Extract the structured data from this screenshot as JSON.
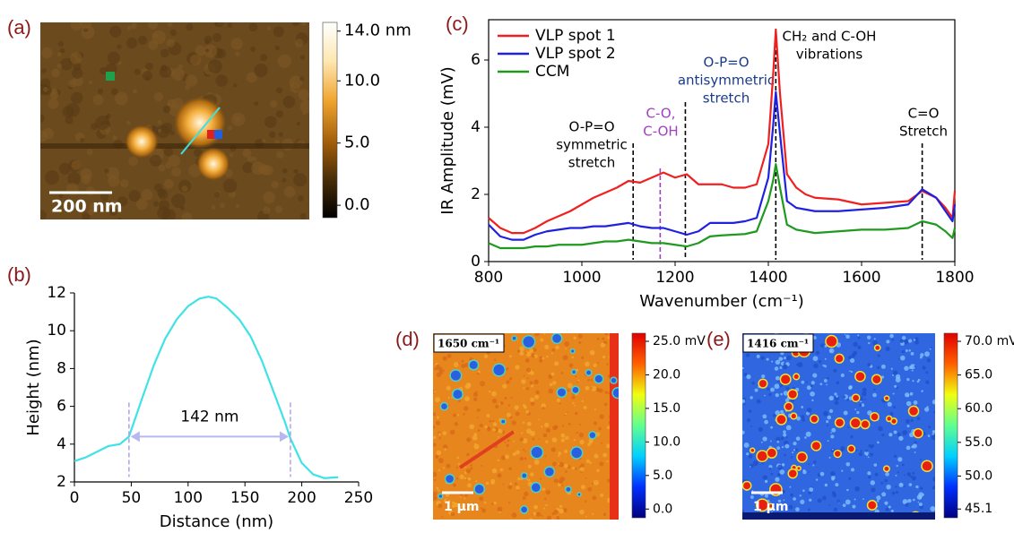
{
  "chart_data": [
    {
      "type": "image",
      "label": "(a)",
      "scalebar": "200 nm",
      "colormap": [
        "#000000",
        "#4a2e08",
        "#a8620c",
        "#f0a530",
        "#fde7b0",
        "#ffffff"
      ],
      "colorbar_lim": [
        -1,
        14.7
      ],
      "colorbar_ticks": [
        {
          "value": 14,
          "label": "14.0 nm"
        },
        {
          "value": 10,
          "label": "10.0"
        },
        {
          "value": 5,
          "label": "5.0"
        },
        {
          "value": 0,
          "label": "0.0"
        }
      ]
    },
    {
      "type": "line",
      "label": "(b)",
      "xlabel": "Distance (nm)",
      "ylabel": "Height (nm)",
      "xlim": [
        0,
        250
      ],
      "ylim": [
        2,
        12
      ],
      "xticks": [
        0,
        50,
        100,
        150,
        200,
        250
      ],
      "yticks": [
        2,
        4,
        6,
        8,
        10,
        12
      ],
      "x": [
        0,
        10,
        20,
        30,
        40,
        48,
        60,
        70,
        80,
        90,
        100,
        110,
        118,
        125,
        135,
        145,
        155,
        165,
        175,
        185,
        190,
        200,
        210,
        220,
        232
      ],
      "series": [
        {
          "color": "#3fe3e6",
          "values": [
            3.1,
            3.3,
            3.6,
            3.9,
            4.0,
            4.4,
            6.5,
            8.2,
            9.6,
            10.6,
            11.3,
            11.7,
            11.8,
            11.7,
            11.2,
            10.6,
            9.7,
            8.4,
            6.8,
            5.2,
            4.3,
            3.0,
            2.4,
            2.2,
            2.25
          ]
        }
      ],
      "span": [
        48,
        190
      ],
      "span_label": "142 nm"
    },
    {
      "type": "line",
      "label": "(c)",
      "xlabel": "Wavenumber (cm⁻¹)",
      "ylabel": "IR Amplitude (mV)",
      "xlim": [
        800,
        1800
      ],
      "ylim": [
        0,
        7.2
      ],
      "xticks": [
        800,
        1000,
        1200,
        1400,
        1600,
        1800
      ],
      "yticks": [
        0,
        2,
        4,
        6
      ],
      "x": [
        800,
        825,
        850,
        875,
        900,
        925,
        950,
        975,
        1000,
        1025,
        1050,
        1075,
        1100,
        1125,
        1150,
        1175,
        1200,
        1225,
        1250,
        1275,
        1300,
        1325,
        1350,
        1375,
        1400,
        1410,
        1416,
        1425,
        1440,
        1460,
        1480,
        1500,
        1550,
        1600,
        1650,
        1700,
        1730,
        1760,
        1780,
        1795,
        1800
      ],
      "series": [
        {
          "name": "VLP spot 1",
          "color": "#f02020",
          "values": [
            1.3,
            1.0,
            0.85,
            0.85,
            1.0,
            1.2,
            1.35,
            1.5,
            1.7,
            1.9,
            2.05,
            2.2,
            2.4,
            2.35,
            2.5,
            2.65,
            2.5,
            2.6,
            2.3,
            2.3,
            2.3,
            2.2,
            2.2,
            2.3,
            3.5,
            5.5,
            6.9,
            5.0,
            2.6,
            2.2,
            2.0,
            1.9,
            1.85,
            1.7,
            1.75,
            1.8,
            2.1,
            1.9,
            1.6,
            1.3,
            2.1
          ]
        },
        {
          "name": "VLP spot 2",
          "color": "#2020e0",
          "values": [
            1.1,
            0.75,
            0.65,
            0.65,
            0.8,
            0.9,
            0.95,
            1.0,
            1.0,
            1.05,
            1.05,
            1.1,
            1.15,
            1.05,
            1.0,
            1.0,
            0.9,
            0.8,
            0.9,
            1.15,
            1.15,
            1.15,
            1.2,
            1.3,
            2.5,
            4.0,
            5.05,
            3.8,
            1.8,
            1.6,
            1.55,
            1.5,
            1.5,
            1.55,
            1.6,
            1.7,
            2.15,
            1.9,
            1.5,
            1.2,
            1.7
          ]
        },
        {
          "name": "CCM",
          "color": "#1f9a1f",
          "values": [
            0.55,
            0.4,
            0.4,
            0.4,
            0.45,
            0.45,
            0.5,
            0.5,
            0.5,
            0.55,
            0.6,
            0.6,
            0.65,
            0.6,
            0.55,
            0.55,
            0.5,
            0.45,
            0.55,
            0.75,
            0.78,
            0.8,
            0.82,
            0.9,
            1.8,
            2.4,
            2.9,
            2.2,
            1.1,
            0.95,
            0.9,
            0.85,
            0.9,
            0.95,
            0.95,
            1.0,
            1.2,
            1.1,
            0.9,
            0.7,
            1.0
          ]
        }
      ],
      "annotations": [
        {
          "x": 1110,
          "text": [
            "O-P=O",
            "symmetric",
            "stretch"
          ],
          "color": "#000000"
        },
        {
          "x": 1168,
          "text": [
            "C-O,",
            "C-OH"
          ],
          "color": "#a040c0"
        },
        {
          "x": 1222,
          "text": [
            "O-P=O",
            "antisymmetric",
            "stretch"
          ],
          "color": "#1a3a8a"
        },
        {
          "x": 1416,
          "text": [
            "CH₂ and C-OH",
            "vibrations"
          ],
          "color": "#000000"
        },
        {
          "x": 1730,
          "text": [
            "C=O",
            "Stretch"
          ],
          "color": "#000000"
        }
      ]
    },
    {
      "type": "image",
      "label": "(d)",
      "inset": "1650 cm⁻¹",
      "scalebar": "1 µm",
      "colormap": [
        "#00007f",
        "#0030ff",
        "#00d0ff",
        "#60ff90",
        "#f0ff10",
        "#ff6000",
        "#e00000"
      ],
      "colorbar_lim": [
        -1.3,
        26.2
      ],
      "colorbar_ticks": [
        {
          "value": 25,
          "label": "25.0 mV"
        },
        {
          "value": 20,
          "label": "20.0"
        },
        {
          "value": 15,
          "label": "15.0"
        },
        {
          "value": 10,
          "label": "10.0"
        },
        {
          "value": 5,
          "label": "5.0"
        },
        {
          "value": 0,
          "label": "0.0"
        }
      ]
    },
    {
      "type": "image",
      "label": "(e)",
      "inset": "1416 cm⁻¹",
      "scalebar": "1 µm",
      "colormap": [
        "#00007f",
        "#0030ff",
        "#00d0ff",
        "#60ff90",
        "#f0ff10",
        "#ff6000",
        "#e00000"
      ],
      "colorbar_lim": [
        43.8,
        71.2
      ],
      "colorbar_ticks": [
        {
          "value": 70,
          "label": "70.0 mV"
        },
        {
          "value": 65,
          "label": "65.0"
        },
        {
          "value": 60,
          "label": "60.0"
        },
        {
          "value": 55,
          "label": "55.0"
        },
        {
          "value": 50,
          "label": "50.0"
        },
        {
          "value": 45.1,
          "label": "45.1"
        }
      ]
    }
  ]
}
